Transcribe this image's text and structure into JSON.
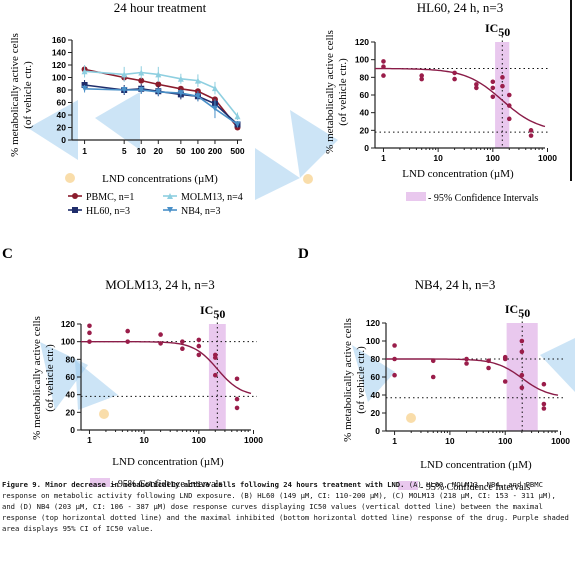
{
  "panels": {
    "A": {
      "title": "24 hour treatment",
      "letter": "",
      "xlabel": "LND concentrations (µM)",
      "ylabel1": "% metabolically active cells",
      "ylabel2": "(of vehicle ctr.)"
    },
    "B": {
      "title": "HL60, 24 h, n=3",
      "letter": "",
      "xlabel": "LND concentration (µM)",
      "ylabel1": "% metabolically active cells",
      "ylabel2": "(of vehicle ctr.)",
      "ic_label": "IC",
      "ic_sub": "50",
      "ci_legend": "- 95% Confidence Intervals"
    },
    "C": {
      "title": "MOLM13, 24 h, n=3",
      "letter": "C",
      "xlabel": "LND concentration (µM)",
      "ylabel1": "% metabolically active cells",
      "ylabel2": "(of vehicle ctr.)",
      "ic_label": "IC",
      "ic_sub": "50",
      "ci_legend": "- 95% Confidence Intervals"
    },
    "D": {
      "title": "NB4, 24 h, n=3",
      "letter": "D",
      "xlabel": "LND concentration (µM)",
      "ylabel1": "% metabolically active cells",
      "ylabel2": "(of vehicle ctr.)",
      "ic_label": "IC",
      "ic_sub": "50",
      "ci_legend": "- 95% Confidence Intervals"
    }
  },
  "legend_A": [
    {
      "label": "PBMC, n=1",
      "color": "#8b1c2c",
      "marker": "circle"
    },
    {
      "label": "MOLM13, n=4",
      "color": "#8ecfe0",
      "marker": "triangle"
    },
    {
      "label": "HL60, n=3",
      "color": "#1f2d6b",
      "marker": "square"
    },
    {
      "label": "NB4, n=3",
      "color": "#4a90c8",
      "marker": "triangle-down"
    }
  ],
  "colors": {
    "dot": "#9a1d4a",
    "curve": "#8a1c48",
    "ci": "#e9c8ee",
    "pbmc": "#8b1c2c",
    "molm13": "#8ecfe0",
    "hl60": "#1f2d6b",
    "nb4": "#4a90c8"
  },
  "chart_data": [
    {
      "panel": "A",
      "type": "line",
      "title": "24 hour treatment",
      "xlabel": "LND concentrations (µM)",
      "ylabel": "% metabolically active cells (of vehicle ctr.)",
      "x_scale": "log",
      "y_range": [
        0,
        160
      ],
      "categories": [
        1,
        5,
        10,
        20,
        50,
        100,
        200,
        500
      ],
      "y_ticks": [
        0,
        20,
        40,
        60,
        80,
        100,
        120,
        140,
        160
      ],
      "series": [
        {
          "name": "PBMC, n=1",
          "values": [
            113,
            100,
            95,
            89,
            82,
            78,
            65,
            20
          ],
          "errors": [
            0,
            0,
            0,
            0,
            0,
            0,
            0,
            0
          ]
        },
        {
          "name": "MOLM13, n=4",
          "values": [
            110,
            105,
            108,
            105,
            98,
            95,
            83,
            38
          ],
          "errors": [
            10,
            12,
            10,
            12,
            8,
            10,
            10,
            6
          ]
        },
        {
          "name": "HL60, n=3",
          "values": [
            88,
            80,
            82,
            78,
            73,
            70,
            58,
            25
          ],
          "errors": [
            8,
            8,
            8,
            8,
            8,
            8,
            8,
            5
          ]
        },
        {
          "name": "NB4, n=3",
          "values": [
            82,
            80,
            80,
            77,
            75,
            70,
            50,
            25
          ],
          "errors": [
            6,
            6,
            6,
            6,
            6,
            8,
            15,
            5
          ]
        }
      ]
    },
    {
      "panel": "B",
      "type": "scatter",
      "title": "HL60, 24 h, n=3",
      "xlabel": "LND concentration (µM)",
      "ylabel": "% metabolically active cells (of vehicle ctr.)",
      "x_scale": "log",
      "x_range": [
        0.7,
        900
      ],
      "x_ticks": [
        1,
        10,
        100,
        1000
      ],
      "y_range": [
        0,
        120
      ],
      "y_ticks": [
        0,
        20,
        40,
        60,
        80,
        100,
        120
      ],
      "top": 90,
      "bottom": 18,
      "ic50": 149,
      "ci": [
        110,
        200
      ],
      "hill": 1.3,
      "points": [
        [
          1,
          98
        ],
        [
          1,
          92
        ],
        [
          1,
          82
        ],
        [
          5,
          82
        ],
        [
          5,
          78
        ],
        [
          20,
          85
        ],
        [
          20,
          78
        ],
        [
          50,
          72
        ],
        [
          50,
          68
        ],
        [
          100,
          75
        ],
        [
          100,
          68
        ],
        [
          100,
          58
        ],
        [
          150,
          80
        ],
        [
          150,
          70
        ],
        [
          200,
          60
        ],
        [
          200,
          48
        ],
        [
          200,
          33
        ],
        [
          500,
          20
        ],
        [
          500,
          14
        ]
      ]
    },
    {
      "panel": "C",
      "type": "scatter",
      "title": "MOLM13, 24 h, n=3",
      "xlabel": "LND concentration (µM)",
      "ylabel": "% metabolically active cells (of vehicle ctr.)",
      "x_scale": "log",
      "x_range": [
        0.7,
        900
      ],
      "x_ticks": [
        1,
        10,
        100,
        1000
      ],
      "y_range": [
        0,
        120
      ],
      "y_ticks": [
        0,
        20,
        40,
        60,
        80,
        100,
        120
      ],
      "top": 100,
      "bottom": 38,
      "ic50": 218,
      "ci": [
        153,
        311
      ],
      "hill": 2,
      "points": [
        [
          1,
          118
        ],
        [
          1,
          110
        ],
        [
          1,
          100
        ],
        [
          5,
          112
        ],
        [
          5,
          100
        ],
        [
          20,
          108
        ],
        [
          20,
          98
        ],
        [
          50,
          100
        ],
        [
          50,
          92
        ],
        [
          100,
          102
        ],
        [
          100,
          95
        ],
        [
          100,
          85
        ],
        [
          200,
          85
        ],
        [
          200,
          82
        ],
        [
          200,
          62
        ],
        [
          500,
          58
        ],
        [
          500,
          35
        ],
        [
          500,
          25
        ]
      ]
    },
    {
      "panel": "D",
      "type": "scatter",
      "title": "NB4, 24 h, n=3",
      "xlabel": "LND concentration (µM)",
      "ylabel": "% metabolically active cells (of vehicle ctr.)",
      "x_scale": "log",
      "x_range": [
        0.7,
        900
      ],
      "x_ticks": [
        1,
        10,
        100,
        1000
      ],
      "y_range": [
        0,
        120
      ],
      "y_ticks": [
        0,
        20,
        40,
        60,
        80,
        100,
        120
      ],
      "top": 80,
      "bottom": 37,
      "ic50": 203,
      "ci": [
        106,
        387
      ],
      "hill": 1.8,
      "points": [
        [
          1,
          95
        ],
        [
          1,
          80
        ],
        [
          1,
          62
        ],
        [
          5,
          78
        ],
        [
          5,
          60
        ],
        [
          20,
          80
        ],
        [
          20,
          75
        ],
        [
          50,
          78
        ],
        [
          50,
          70
        ],
        [
          100,
          82
        ],
        [
          100,
          80
        ],
        [
          100,
          55
        ],
        [
          200,
          100
        ],
        [
          200,
          88
        ],
        [
          200,
          62
        ],
        [
          200,
          48
        ],
        [
          500,
          52
        ],
        [
          500,
          30
        ],
        [
          500,
          25
        ]
      ]
    }
  ],
  "caption": {
    "bold": "Figure 9. Minor decrease in metabolically active cells following 24 hours treatment with LND.",
    "text": " (A) HL60, MOLM13, NB4, and PBMC response on metabolic activity following LND exposure. (B) HL60 (149 µM, CI: 110-200 µM), (C) MOLM13 (218 µM, CI: 153 - 311 µM), and (D) NB4 (203 µM, CI: 106 - 387 µM) dose response curves displaying IC50 values (vertical dotted line) between the maximal response (top horizontal dotted line) and the maximal inhibited (bottom horizontal dotted line) response of the drug. Purple shaded area displays 95% CI of IC50 value."
  }
}
